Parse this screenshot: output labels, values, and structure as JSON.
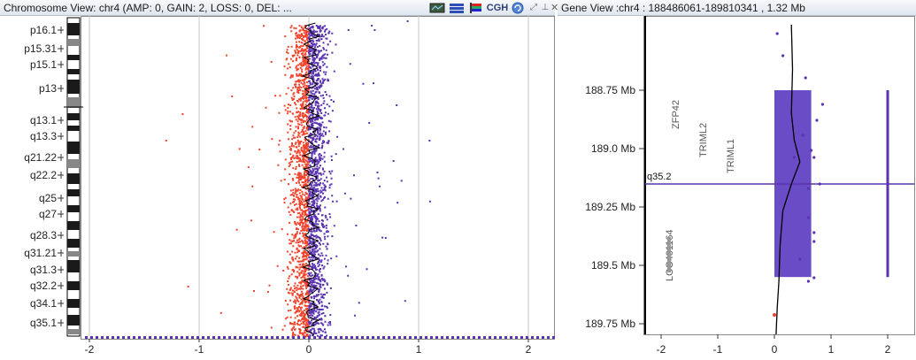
{
  "chromosome_view": {
    "title": "Chromosome View: chr4 (AMP: 0, GAIN: 2, LOSS: 0, DEL: ...",
    "toolbar_icons": [
      "graph-icon",
      "bars-icon",
      "flag-icon",
      "cgh-icon",
      "refresh-icon",
      "restore-icon",
      "pin-icon",
      "close-icon"
    ],
    "cgh_label": "CGH",
    "close_glyph": "✕",
    "band_labels": [
      "p16.1",
      "p15.31",
      "p15.1",
      "p13",
      "q13.1",
      "q13.3",
      "q21.22",
      "q22.2",
      "q25",
      "q27",
      "q28.3",
      "q31.21",
      "q31.3",
      "q32.2",
      "q34.1",
      "q35.1"
    ],
    "x_ticks": [
      "-2",
      "-1",
      "0",
      "1",
      "2"
    ],
    "colors": {
      "negative": "#f0442c",
      "positive": "#5a33b0",
      "line": "#000000",
      "grid": "#c8c8c8"
    }
  },
  "gene_view": {
    "title": "Gene View :chr4 : 188486061-189810341 , 1.32 Mb",
    "y_ticks": [
      "188.75 Mb",
      "189.0 Mb",
      "189.25 Mb",
      "189.5 Mb",
      "189.75 Mb"
    ],
    "x_ticks": [
      "-2",
      "-1",
      "0",
      "1",
      "2"
    ],
    "band_marker": "q35.2",
    "genes": [
      "ZFP42",
      "TRIML2",
      "TRIML1",
      "LOC401164"
    ],
    "colors": {
      "segment": "#6a4cc6",
      "marker_line": "#5a33b0"
    }
  }
}
